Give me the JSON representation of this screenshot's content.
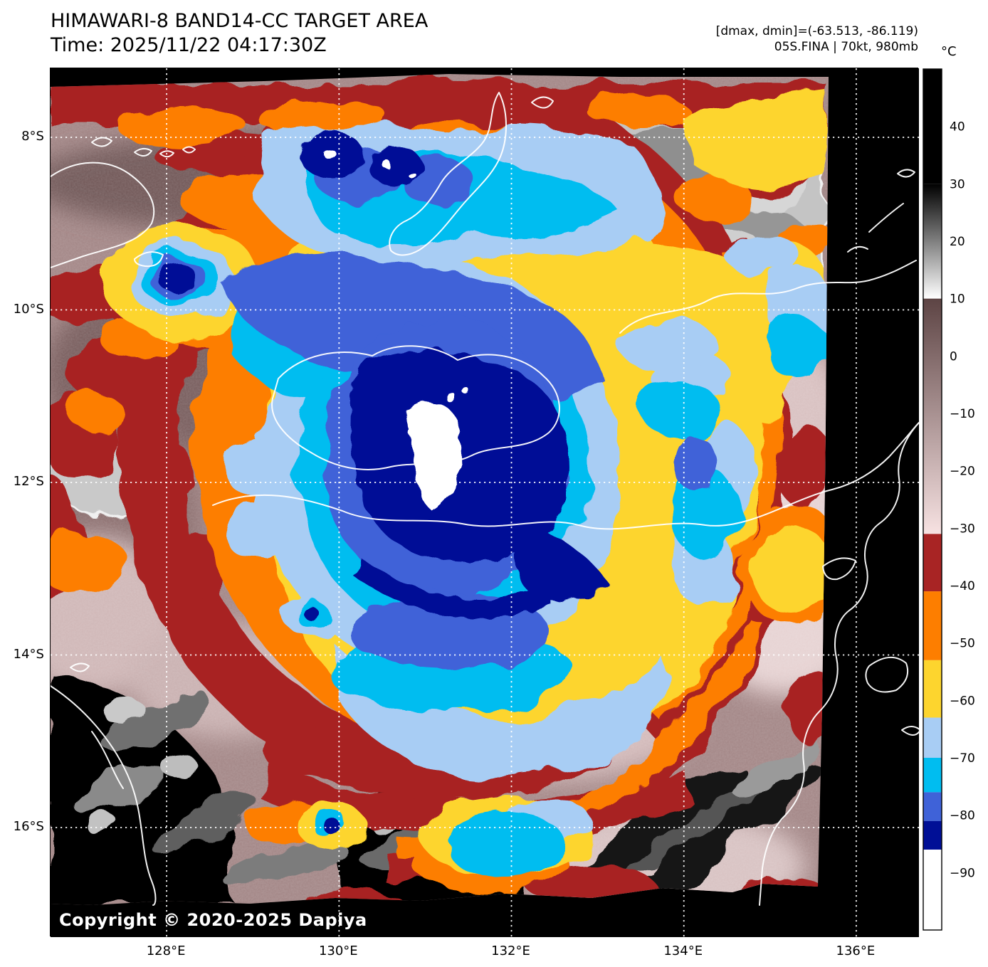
{
  "header": {
    "title_line1": "HIMAWARI-8 BAND14-CC TARGET AREA",
    "title_line2": "Time: 2025/11/22 04:17:30Z",
    "annotation_line1": "[dmax, dmin]=(-63.513, -86.119)",
    "annotation_line2": "05S.FINA | 70kt, 980mb"
  },
  "map": {
    "copyright": "Copyright © 2020-2025 Dapiya",
    "satellite": "HIMAWARI-8",
    "band": "BAND14-CC",
    "product": "TARGET AREA",
    "storm_id": "05S.FINA",
    "intensity": "70kt",
    "pressure": "980mb",
    "dmax": -63.513,
    "dmin": -86.119
  },
  "axes": {
    "x": {
      "ticks": [
        {
          "label": "128°E",
          "value": 128
        },
        {
          "label": "130°E",
          "value": 130
        },
        {
          "label": "132°E",
          "value": 132
        },
        {
          "label": "134°E",
          "value": 134
        },
        {
          "label": "136°E",
          "value": 136
        }
      ]
    },
    "y": {
      "ticks": [
        {
          "label": "8°S",
          "value": -8
        },
        {
          "label": "10°S",
          "value": -10
        },
        {
          "label": "12°S",
          "value": -12
        },
        {
          "label": "14°S",
          "value": -14
        },
        {
          "label": "16°S",
          "value": -16
        }
      ]
    }
  },
  "colorbar": {
    "unit": "°C",
    "t_max": 50,
    "t_min": -100,
    "ticks": [
      {
        "label": "40",
        "value": 40
      },
      {
        "label": "30",
        "value": 30
      },
      {
        "label": "20",
        "value": 20
      },
      {
        "label": "10",
        "value": 10
      },
      {
        "label": "0",
        "value": 0
      },
      {
        "label": "−10",
        "value": -10
      },
      {
        "label": "−20",
        "value": -20
      },
      {
        "label": "−30",
        "value": -30
      },
      {
        "label": "−40",
        "value": -40
      },
      {
        "label": "−50",
        "value": -50
      },
      {
        "label": "−60",
        "value": -60
      },
      {
        "label": "−70",
        "value": -70
      },
      {
        "label": "−80",
        "value": -80
      },
      {
        "label": "−90",
        "value": -90
      }
    ],
    "segments": [
      {
        "from": 50,
        "to": 30,
        "color": "#000000"
      },
      {
        "from": 30,
        "to": 10,
        "gradient": [
          "#000000",
          "#ffffff"
        ]
      },
      {
        "from": 10,
        "to": -31,
        "gradient": [
          "#5d4444",
          "#f7e2e2"
        ]
      },
      {
        "from": -31,
        "to": -41,
        "color": "#a82424"
      },
      {
        "from": -41,
        "to": -53,
        "color": "#fd7e00"
      },
      {
        "from": -53,
        "to": -63,
        "color": "#fdd52e"
      },
      {
        "from": -63,
        "to": -70,
        "color": "#a8cdf4"
      },
      {
        "from": -70,
        "to": -76,
        "color": "#00bdf0"
      },
      {
        "from": -76,
        "to": -81,
        "color": "#3f62d8"
      },
      {
        "from": -81,
        "to": -86,
        "color": "#000f96"
      },
      {
        "from": -86,
        "to": -100,
        "color": "#ffffff"
      }
    ]
  }
}
